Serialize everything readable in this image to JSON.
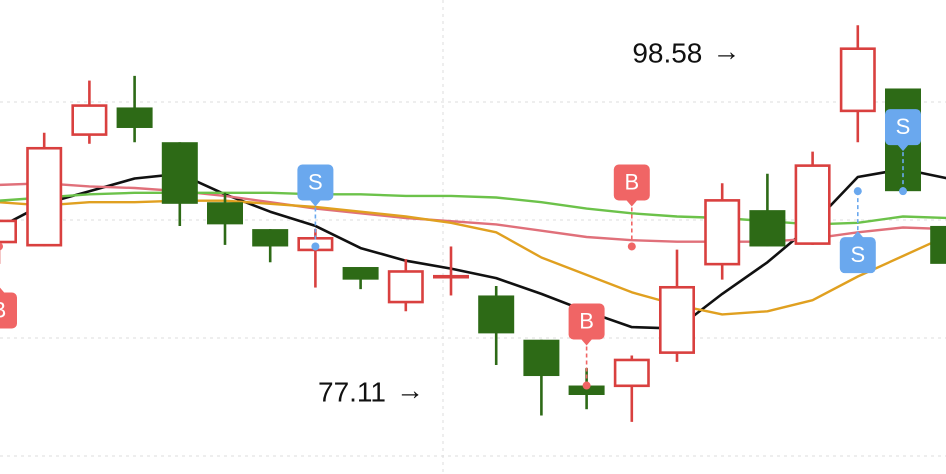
{
  "chart_data": {
    "type": "candlestick",
    "y_range": [
      72,
      102
    ],
    "grid": true,
    "colors": {
      "up": "#d9403f",
      "down": "#2d6a16",
      "ma_black": "#111111",
      "ma_pink": "#e0707a",
      "ma_orange": "#e0a020",
      "ma_green": "#6cc24a",
      "buy_marker": "#f06565",
      "sell_marker": "#6aa8ee"
    },
    "candles": [
      {
        "open": 86.6,
        "close": 88.1,
        "high": 88.1,
        "low": 85.3
      },
      {
        "open": 86.4,
        "close": 92.7,
        "high": 93.6,
        "low": 86.4
      },
      {
        "open": 93.4,
        "close": 95.4,
        "high": 96.9,
        "low": 92.9
      },
      {
        "open": 95.2,
        "close": 93.9,
        "high": 97.2,
        "low": 93.0
      },
      {
        "open": 93.0,
        "close": 89.1,
        "high": 93.0,
        "low": 87.7
      },
      {
        "open": 89.2,
        "close": 87.8,
        "high": 89.8,
        "low": 86.5
      },
      {
        "open": 87.5,
        "close": 86.4,
        "high": 87.5,
        "low": 85.4
      },
      {
        "open": 86.1,
        "close": 87.0,
        "high": 87.5,
        "low": 83.8
      },
      {
        "open": 85.1,
        "close": 84.3,
        "high": 85.1,
        "low": 83.7
      },
      {
        "open": 82.8,
        "close": 84.9,
        "high": 85.6,
        "low": 82.3
      },
      {
        "open": 84.6,
        "close": 84.6,
        "high": 86.4,
        "low": 83.3
      },
      {
        "open": 83.3,
        "close": 80.9,
        "high": 83.9,
        "low": 78.9
      },
      {
        "open": 80.5,
        "close": 78.2,
        "high": 80.5,
        "low": 75.7
      },
      {
        "open": 77.6,
        "close": 77.0,
        "high": 78.7,
        "low": 76.1
      },
      {
        "open": 77.5,
        "close": 79.3,
        "high": 79.5,
        "low": 75.3
      },
      {
        "open": 79.6,
        "close": 83.9,
        "high": 86.2,
        "low": 79.1
      },
      {
        "open": 85.2,
        "close": 89.4,
        "high": 90.4,
        "low": 84.3
      },
      {
        "open": 88.7,
        "close": 86.4,
        "high": 91.0,
        "low": 86.4
      },
      {
        "open": 86.5,
        "close": 91.6,
        "high": 92.4,
        "low": 86.5
      },
      {
        "open": 94.9,
        "close": 99.0,
        "high": 100.4,
        "low": 93.0
      },
      {
        "open": 96.4,
        "close": 89.9,
        "high": 96.4,
        "low": 89.9
      },
      {
        "open": 87.7,
        "close": 85.3,
        "high": 88.4,
        "low": 82.0
      }
    ],
    "moving_averages": [
      {
        "color": "ma_black",
        "values": [
          87.6,
          89.1,
          89.9,
          90.7,
          91.0,
          89.7,
          88.6,
          87.7,
          86.3,
          85.5,
          85.0,
          84.4,
          83.4,
          82.3,
          81.3,
          81.2,
          83.4,
          85.4,
          87.8,
          90.8,
          91.3,
          90.7
        ]
      },
      {
        "color": "ma_pink",
        "values": [
          90.3,
          90.4,
          90.2,
          90.1,
          89.9,
          89.6,
          89.2,
          88.8,
          88.5,
          88.2,
          88.0,
          87.8,
          87.4,
          87.0,
          86.8,
          86.7,
          86.7,
          86.7,
          86.9,
          87.3,
          87.6,
          87.5
        ]
      },
      {
        "color": "ma_orange",
        "values": [
          89.2,
          89.0,
          89.2,
          89.2,
          89.3,
          89.3,
          89.1,
          88.9,
          88.6,
          88.3,
          87.9,
          87.3,
          85.7,
          84.6,
          83.5,
          82.7,
          82.1,
          82.3,
          83.0,
          84.5,
          85.8,
          87.1
        ]
      },
      {
        "color": "ma_green",
        "values": [
          89.3,
          89.5,
          89.7,
          89.8,
          89.8,
          89.8,
          89.8,
          89.7,
          89.7,
          89.6,
          89.6,
          89.5,
          89.2,
          88.8,
          88.5,
          88.3,
          88.2,
          88.0,
          87.8,
          87.9,
          88.3,
          88.2
        ]
      }
    ],
    "signals": [
      {
        "type": "buy",
        "label": "B",
        "index": 0,
        "value": 86.4,
        "side": "below"
      },
      {
        "type": "sell",
        "label": "S",
        "index": 7,
        "value": 86.4,
        "side": "above"
      },
      {
        "type": "buy",
        "label": "B",
        "index": 13,
        "value": 77.6,
        "side": "above"
      },
      {
        "type": "buy",
        "label": "B",
        "index": 14,
        "value": 86.4,
        "side": "above"
      },
      {
        "type": "sell",
        "label": "S",
        "index": 19,
        "value": 89.9,
        "side": "below"
      },
      {
        "type": "sell",
        "label": "S",
        "index": 20,
        "value": 89.9,
        "side": "above"
      }
    ],
    "annotations": [
      {
        "label": "98.58",
        "value": 98.58,
        "arrow": "→",
        "index": 17
      },
      {
        "label": "77.11",
        "value": 77.11,
        "arrow": "→",
        "index": 10
      }
    ]
  }
}
